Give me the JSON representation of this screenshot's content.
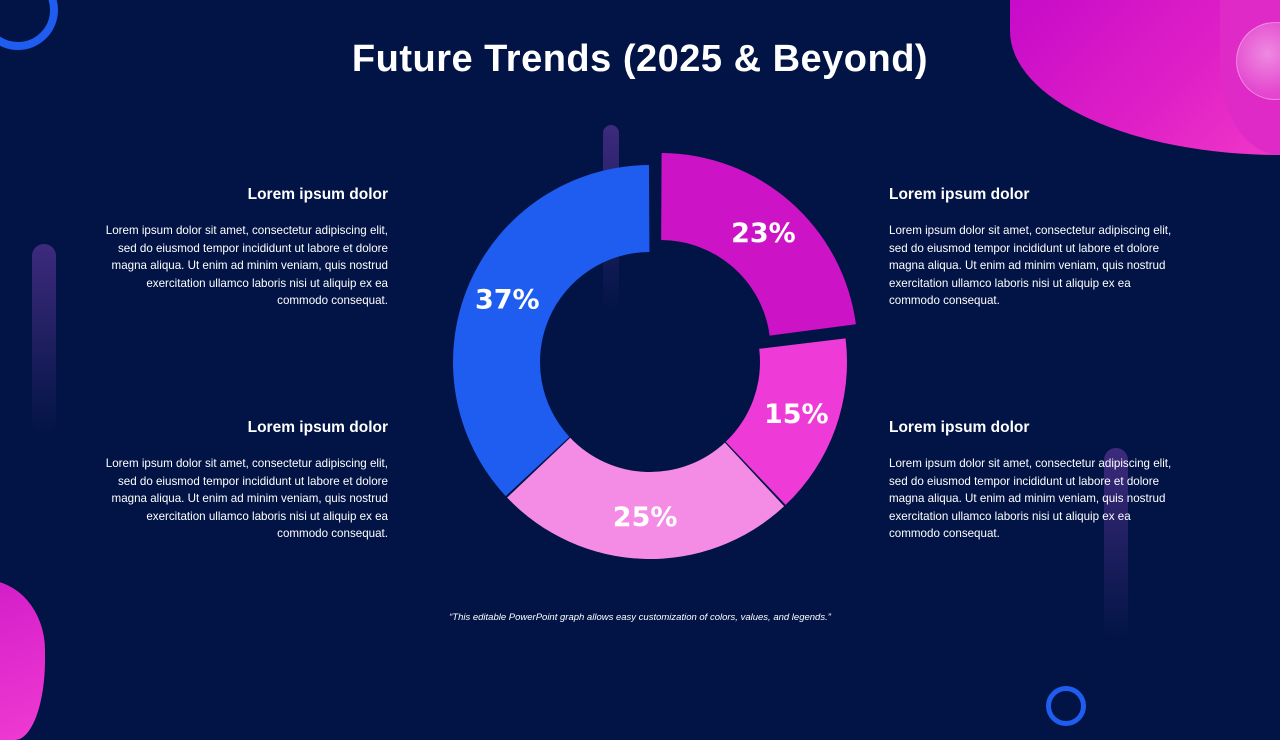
{
  "title": "Future Trends (2025 & Beyond)",
  "blocks": [
    {
      "heading": "Lorem ipsum dolor",
      "body": "Lorem ipsum dolor sit amet, consectetur adipiscing elit, sed do eiusmod tempor incididunt ut labore et dolore magna aliqua. Ut enim ad minim veniam, quis nostrud exercitation ullamco laboris nisi ut aliquip ex ea commodo consequat."
    },
    {
      "heading": "Lorem ipsum dolor",
      "body": "Lorem ipsum dolor sit amet, consectetur adipiscing elit, sed do eiusmod tempor incididunt ut labore et dolore magna aliqua. Ut enim ad minim veniam, quis nostrud exercitation ullamco laboris nisi ut aliquip ex ea commodo consequat."
    },
    {
      "heading": "Lorem ipsum dolor",
      "body": "Lorem ipsum dolor sit amet, consectetur adipiscing elit, sed do eiusmod tempor incididunt ut labore et dolore magna aliqua. Ut enim ad minim veniam, quis nostrud exercitation ullamco laboris nisi ut aliquip ex ea commodo consequat."
    },
    {
      "heading": "Lorem ipsum dolor",
      "body": "Lorem ipsum dolor sit amet, consectetur adipiscing elit, sed do eiusmod tempor incididunt ut labore et dolore magna aliqua. Ut enim ad minim veniam, quis nostrud exercitation ullamco laboris nisi ut aliquip ex ea commodo consequat."
    }
  ],
  "footnote": "“This editable PowerPoint graph allows easy customization of colors, values, and legends.”",
  "colors": {
    "background": "#021445",
    "blue": "#1f5cf0",
    "magenta": "#cc14c6",
    "pink": "#ee3ad6",
    "light_pink": "#f48ce6"
  },
  "chart_data": {
    "type": "pie",
    "variant": "donut",
    "slices": [
      {
        "value": 23,
        "label": "23%",
        "color": "#cc14c6",
        "exploded": true
      },
      {
        "value": 15,
        "label": "15%",
        "color": "#ee3ad6",
        "exploded": false
      },
      {
        "value": 25,
        "label": "25%",
        "color": "#f48ce6",
        "exploded": false
      },
      {
        "value": 37,
        "label": "37%",
        "color": "#1f5cf0",
        "exploded": false
      }
    ],
    "start_angle_deg": 0,
    "direction": "clockwise"
  }
}
